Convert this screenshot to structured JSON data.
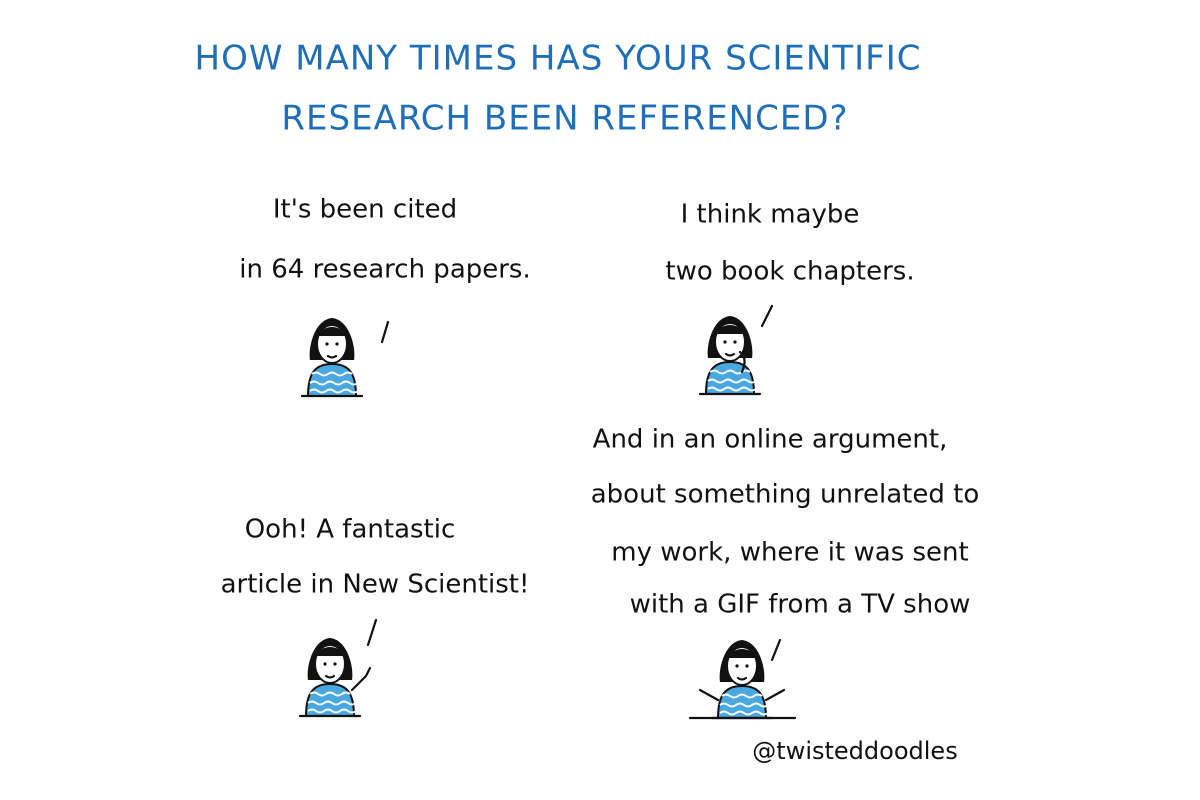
{
  "title": {
    "lines": [
      "HOW MANY TIMES HAS YOUR SCIENTIFIC",
      "RESEARCH BEEN REFERENCED?"
    ]
  },
  "panels": [
    {
      "lines": [
        "It's been cited",
        "in 64 research papers."
      ]
    },
    {
      "lines": [
        "I think maybe",
        "two book chapters."
      ]
    },
    {
      "lines": [
        "Ooh! A fantastic",
        "article in New Scientist!"
      ]
    },
    {
      "lines": [
        "And in an online argument,",
        "about something unrelated to",
        "my work, where it was sent",
        "with a GIF from a TV show"
      ]
    }
  ],
  "credit": "@twisteddoodles"
}
